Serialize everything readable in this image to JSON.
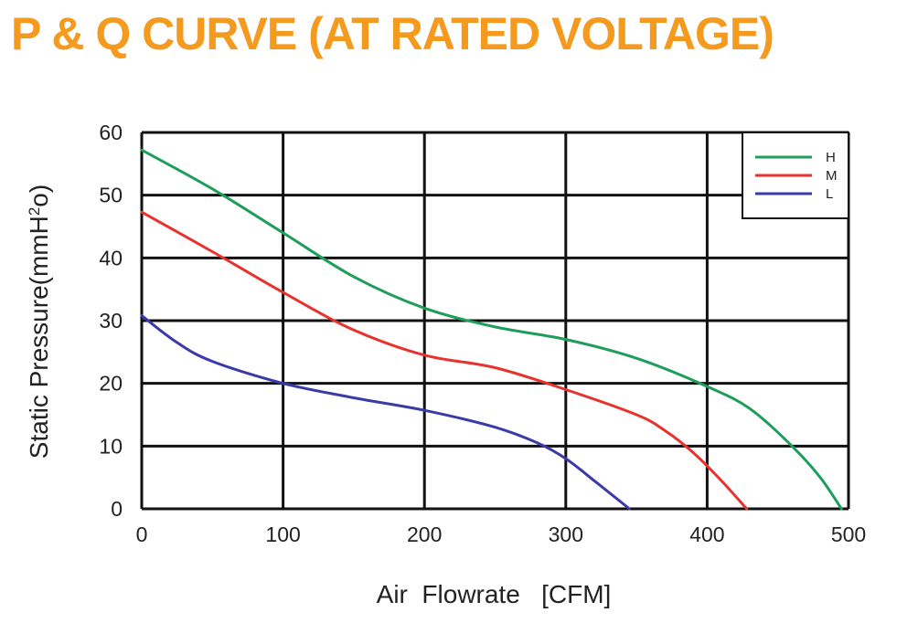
{
  "title": "P & Q CURVE (AT RATED VOLTAGE)",
  "chart_data": {
    "type": "line",
    "title": "P & Q CURVE (AT RATED VOLTAGE)",
    "xlabel": "Air  Flowrate   [CFM]",
    "ylabel": "Static Pressure(mmH",
    "ylabel_sup": "2",
    "ylabel_tail": "o)",
    "xlim": [
      0,
      500
    ],
    "ylim": [
      0,
      60
    ],
    "x_ticks": [
      "0",
      "100",
      "200",
      "300",
      "400",
      "500"
    ],
    "y_ticks": [
      "0",
      "10",
      "20",
      "30",
      "40",
      "50",
      "60"
    ],
    "grid": true,
    "legend_position": "top-right",
    "series": [
      {
        "name": "H",
        "color": "#1e9e5a",
        "x": [
          0,
          50,
          100,
          150,
          200,
          250,
          300,
          350,
          400,
          430,
          460,
          480,
          495
        ],
        "y": [
          57.2,
          51,
          44,
          37,
          32,
          29,
          27,
          24,
          19.5,
          16,
          10,
          5,
          0
        ]
      },
      {
        "name": "M",
        "color": "#e8322d",
        "x": [
          0,
          50,
          100,
          150,
          200,
          250,
          300,
          350,
          370,
          390,
          410,
          428
        ],
        "y": [
          47.3,
          41,
          34.5,
          28.5,
          24.5,
          22.5,
          19,
          15,
          12.5,
          9,
          4.5,
          0
        ]
      },
      {
        "name": "L",
        "color": "#3a3aa8",
        "x": [
          0,
          25,
          50,
          100,
          150,
          200,
          250,
          280,
          300,
          320,
          335,
          345
        ],
        "y": [
          30.8,
          26.5,
          23.5,
          20,
          17.7,
          15.7,
          13,
          10.5,
          8,
          4.5,
          1.8,
          0
        ]
      }
    ]
  }
}
